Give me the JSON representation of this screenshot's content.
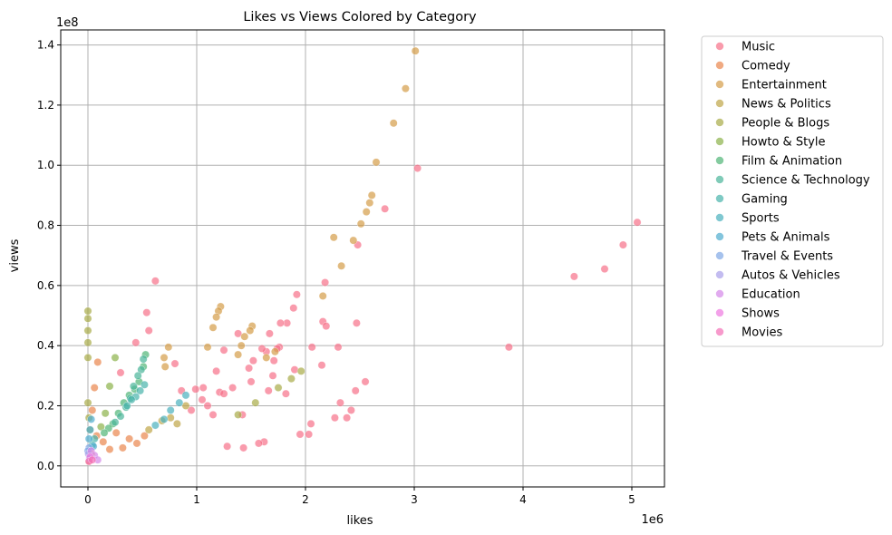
{
  "chart_data": {
    "type": "scatter",
    "title": "Likes vs Views Colored by Category",
    "xlabel": "likes",
    "ylabel": "views",
    "x_multiplier_label": "1e6",
    "y_multiplier_label": "1e8",
    "xlim": [
      -250000,
      5300000
    ],
    "ylim": [
      -7000000,
      145000000
    ],
    "xticks": [
      0,
      1000000,
      2000000,
      3000000,
      4000000,
      5000000
    ],
    "xtick_labels": [
      "0",
      "1",
      "2",
      "3",
      "4",
      "5"
    ],
    "yticks": [
      0,
      20000000,
      40000000,
      60000000,
      80000000,
      100000000,
      120000000,
      140000000
    ],
    "ytick_labels": [
      "0.0",
      "0.2",
      "0.4",
      "0.6",
      "0.8",
      "1.0",
      "1.2",
      "1.4"
    ],
    "grid": true,
    "legend_position": "outside-right-top",
    "point_alpha": 0.7,
    "series": [
      {
        "name": "Music",
        "color": "#f77189",
        "points": [
          [
            5050000,
            81000000
          ],
          [
            4920000,
            73500000
          ],
          [
            4750000,
            65500000
          ],
          [
            4470000,
            63000000
          ],
          [
            3870000,
            39500000
          ],
          [
            3030000,
            99000000
          ],
          [
            2730000,
            85500000
          ],
          [
            2480000,
            73500000
          ],
          [
            2470000,
            47500000
          ],
          [
            2550000,
            28000000
          ],
          [
            2460000,
            25000000
          ],
          [
            2420000,
            18500000
          ],
          [
            2380000,
            16000000
          ],
          [
            2300000,
            39500000
          ],
          [
            2320000,
            21000000
          ],
          [
            2270000,
            16000000
          ],
          [
            2180000,
            61000000
          ],
          [
            2160000,
            48000000
          ],
          [
            2190000,
            46500000
          ],
          [
            2150000,
            33500000
          ],
          [
            2060000,
            39500000
          ],
          [
            2050000,
            14000000
          ],
          [
            2030000,
            10500000
          ],
          [
            1950000,
            10500000
          ],
          [
            1920000,
            57000000
          ],
          [
            1890000,
            52500000
          ],
          [
            1830000,
            47500000
          ],
          [
            1820000,
            24000000
          ],
          [
            1770000,
            47500000
          ],
          [
            1760000,
            39500000
          ],
          [
            1740000,
            39000000
          ],
          [
            1710000,
            35000000
          ],
          [
            1700000,
            30000000
          ],
          [
            1670000,
            44000000
          ],
          [
            1660000,
            25000000
          ],
          [
            1640000,
            38000000
          ],
          [
            1620000,
            8000000
          ],
          [
            1570000,
            7500000
          ],
          [
            1520000,
            35000000
          ],
          [
            1500000,
            28000000
          ],
          [
            1430000,
            6000000
          ],
          [
            1280000,
            6500000
          ],
          [
            1210000,
            24500000
          ],
          [
            1100000,
            20000000
          ],
          [
            990000,
            25500000
          ],
          [
            860000,
            25000000
          ],
          [
            800000,
            34000000
          ],
          [
            620000,
            61500000
          ],
          [
            540000,
            51000000
          ],
          [
            560000,
            45000000
          ],
          [
            440000,
            41000000
          ],
          [
            300000,
            31000000
          ],
          [
            1380000,
            44000000
          ],
          [
            1330000,
            26000000
          ],
          [
            1250000,
            38500000
          ],
          [
            1180000,
            31500000
          ],
          [
            1050000,
            22000000
          ],
          [
            950000,
            18500000
          ],
          [
            1150000,
            17000000
          ],
          [
            1420000,
            17000000
          ],
          [
            1250000,
            24000000
          ],
          [
            1480000,
            32500000
          ],
          [
            1600000,
            39000000
          ],
          [
            1900000,
            32000000
          ],
          [
            1060000,
            26000000
          ]
        ]
      },
      {
        "name": "Comedy",
        "color": "#e9864d",
        "points": [
          [
            90000,
            34500000
          ],
          [
            60000,
            26000000
          ],
          [
            40000,
            18500000
          ],
          [
            80000,
            10000000
          ],
          [
            140000,
            8000000
          ],
          [
            200000,
            5500000
          ],
          [
            260000,
            11000000
          ],
          [
            320000,
            6000000
          ],
          [
            380000,
            9000000
          ],
          [
            450000,
            7500000
          ],
          [
            520000,
            10000000
          ],
          [
            30000,
            4000000
          ],
          [
            10000,
            1500000
          ]
        ]
      },
      {
        "name": "Entertainment",
        "color": "#d49c49",
        "points": [
          [
            3010000,
            138000000
          ],
          [
            2920000,
            125500000
          ],
          [
            2810000,
            114000000
          ],
          [
            2650000,
            101000000
          ],
          [
            2610000,
            90000000
          ],
          [
            2590000,
            87500000
          ],
          [
            2560000,
            84500000
          ],
          [
            2510000,
            80500000
          ],
          [
            2440000,
            75000000
          ],
          [
            2260000,
            76000000
          ],
          [
            2330000,
            66500000
          ],
          [
            2160000,
            56500000
          ],
          [
            1220000,
            53000000
          ],
          [
            1200000,
            51500000
          ],
          [
            1180000,
            49500000
          ],
          [
            1150000,
            46000000
          ],
          [
            1510000,
            46500000
          ],
          [
            1490000,
            45000000
          ],
          [
            1440000,
            43000000
          ],
          [
            1100000,
            39500000
          ],
          [
            1410000,
            40000000
          ],
          [
            1380000,
            37000000
          ],
          [
            740000,
            39500000
          ],
          [
            700000,
            36000000
          ],
          [
            710000,
            33000000
          ],
          [
            1640000,
            36000000
          ],
          [
            1720000,
            38000000
          ]
        ]
      },
      {
        "name": "News & Politics",
        "color": "#bfa547",
        "points": [
          [
            900000,
            20000000
          ],
          [
            760000,
            16000000
          ],
          [
            820000,
            14000000
          ],
          [
            680000,
            15000000
          ],
          [
            560000,
            12000000
          ]
        ]
      },
      {
        "name": "People & Blogs",
        "color": "#a8ab47",
        "points": [
          [
            0,
            51500000
          ],
          [
            0,
            49000000
          ],
          [
            0,
            45000000
          ],
          [
            0,
            41000000
          ],
          [
            0,
            36000000
          ],
          [
            0,
            21000000
          ],
          [
            1960000,
            31500000
          ],
          [
            1870000,
            29000000
          ],
          [
            1750000,
            26000000
          ],
          [
            1540000,
            21000000
          ],
          [
            1380000,
            17000000
          ],
          [
            10000,
            16000000
          ],
          [
            20000,
            12000000
          ]
        ]
      },
      {
        "name": "Howto & Style",
        "color": "#8bb24a",
        "points": [
          [
            250000,
            36000000
          ],
          [
            200000,
            26500000
          ],
          [
            160000,
            17500000
          ],
          [
            120000,
            13000000
          ]
        ]
      },
      {
        "name": "Film & Animation",
        "color": "#50b576",
        "points": [
          [
            530000,
            37000000
          ],
          [
            510000,
            33000000
          ],
          [
            470000,
            28000000
          ],
          [
            430000,
            25500000
          ],
          [
            380000,
            23500000
          ],
          [
            330000,
            21000000
          ],
          [
            280000,
            17500000
          ],
          [
            230000,
            14000000
          ],
          [
            190000,
            12500000
          ],
          [
            150000,
            11000000
          ]
        ]
      },
      {
        "name": "Science & Technology",
        "color": "#4ab59a",
        "points": [
          [
            510000,
            35500000
          ],
          [
            490000,
            32000000
          ],
          [
            460000,
            30000000
          ],
          [
            420000,
            26500000
          ],
          [
            390000,
            22500000
          ],
          [
            350000,
            19500000
          ],
          [
            300000,
            16500000
          ],
          [
            250000,
            14500000
          ]
        ]
      },
      {
        "name": "Gaming",
        "color": "#48b3ab",
        "points": [
          [
            520000,
            27000000
          ],
          [
            480000,
            25000000
          ],
          [
            440000,
            23000000
          ],
          [
            400000,
            22000000
          ],
          [
            360000,
            20000000
          ],
          [
            60000,
            9000000
          ],
          [
            40000,
            7000000
          ]
        ]
      },
      {
        "name": "Sports",
        "color": "#4ab1bd",
        "points": [
          [
            900000,
            23500000
          ],
          [
            840000,
            21000000
          ],
          [
            760000,
            18500000
          ],
          [
            700000,
            15500000
          ],
          [
            620000,
            13500000
          ]
        ]
      },
      {
        "name": "Pets & Animals",
        "color": "#4fadcf",
        "points": [
          [
            30000,
            15500000
          ],
          [
            20000,
            12000000
          ],
          [
            10000,
            9000000
          ],
          [
            50000,
            6500000
          ]
        ]
      },
      {
        "name": "Travel & Events",
        "color": "#80a8e6",
        "points": [
          [
            10000,
            6000000
          ],
          [
            0,
            5000000
          ],
          [
            20000,
            3000000
          ]
        ]
      },
      {
        "name": "Autos & Vehicles",
        "color": "#aa9fe9",
        "points": [
          [
            5000,
            4000000
          ],
          [
            15000,
            2500000
          ]
        ]
      },
      {
        "name": "Education",
        "color": "#d487e8",
        "points": [
          [
            30000,
            5000000
          ],
          [
            60000,
            3500000
          ],
          [
            90000,
            2000000
          ]
        ]
      },
      {
        "name": "Shows",
        "color": "#ee79e0",
        "points": [
          [
            20000,
            3000000
          ]
        ]
      },
      {
        "name": "Movies",
        "color": "#f36fb7",
        "points": [
          [
            10000,
            1500000
          ],
          [
            40000,
            2000000
          ]
        ]
      }
    ]
  }
}
